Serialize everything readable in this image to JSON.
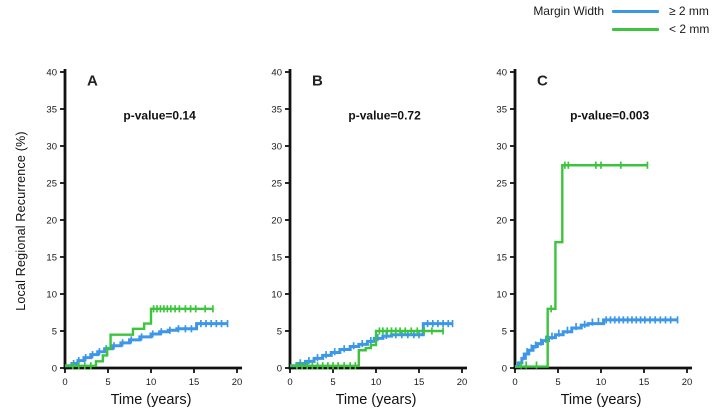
{
  "legend": {
    "title": "Margin Width",
    "entries": [
      {
        "name": "ge-2mm",
        "label": "≥ 2 mm",
        "color": "#3D97E8"
      },
      {
        "name": "lt-2mm",
        "label": "< 2 mm",
        "color": "#3CC43C"
      }
    ]
  },
  "chart_data": {
    "type": "line",
    "subtype": "kaplan-meier-step-curves",
    "xlabel": "Time (years)",
    "ylabel": "Local Regional Recurrence (%)",
    "xlim": [
      0,
      20
    ],
    "ylim": [
      0,
      40
    ],
    "xticks": [
      0,
      5,
      10,
      15,
      20
    ],
    "yticks": [
      0,
      5,
      10,
      15,
      20,
      25,
      30,
      35,
      40
    ],
    "grid": false,
    "legend_position": "top-right",
    "colors": {
      "axis": "#111111",
      "text": "#1a1a1a"
    },
    "panels": [
      {
        "label": "A",
        "annotation": "p-value=0.14",
        "series": [
          {
            "name": "≥ 2 mm",
            "color": "#3D97E8",
            "width": 3,
            "points": [
              [
                0,
                0.3
              ],
              [
                0.8,
                0.6
              ],
              [
                1.5,
                1.0
              ],
              [
                2.2,
                1.4
              ],
              [
                3,
                1.8
              ],
              [
                3.8,
                2.2
              ],
              [
                4.6,
                2.6
              ],
              [
                5.5,
                3.0
              ],
              [
                6.5,
                3.4
              ],
              [
                7.5,
                3.8
              ],
              [
                8.7,
                4.2
              ],
              [
                10,
                4.6
              ],
              [
                11,
                4.9
              ],
              [
                12,
                5.1
              ],
              [
                13,
                5.3
              ],
              [
                15.3,
                6.0
              ]
            ],
            "end": 18.9,
            "censors": [
              [
                1,
                0.6
              ],
              [
                1.6,
                1
              ],
              [
                2.4,
                1.4
              ],
              [
                3.2,
                1.8
              ],
              [
                4,
                2.2
              ],
              [
                4.8,
                2.6
              ],
              [
                5.7,
                3
              ],
              [
                6.7,
                3.4
              ],
              [
                7.7,
                3.8
              ],
              [
                8.9,
                4.2
              ],
              [
                10.2,
                4.6
              ],
              [
                11.2,
                4.9
              ],
              [
                12.2,
                5.1
              ],
              [
                13.2,
                5.3
              ],
              [
                14,
                5.3
              ],
              [
                14.7,
                5.3
              ],
              [
                15.8,
                6
              ],
              [
                16.4,
                6
              ],
              [
                17,
                6
              ],
              [
                17.6,
                6
              ],
              [
                18.2,
                6
              ],
              [
                18.9,
                6
              ]
            ]
          },
          {
            "name": "< 2 mm",
            "color": "#3CC43C",
            "width": 2.4,
            "points": [
              [
                0,
                0.3
              ],
              [
                3.6,
                0.9
              ],
              [
                4.4,
                1.7
              ],
              [
                4.9,
                2.7
              ],
              [
                5.3,
                4.5
              ],
              [
                7.9,
                5.3
              ],
              [
                9.2,
                6.0
              ],
              [
                10,
                8.0
              ]
            ],
            "end": 17.2,
            "censors": [
              [
                0.9,
                0.3
              ],
              [
                1.6,
                0.3
              ],
              [
                2.3,
                0.3
              ],
              [
                3,
                0.3
              ],
              [
                10.3,
                8
              ],
              [
                10.7,
                8
              ],
              [
                11.1,
                8
              ],
              [
                11.5,
                8
              ],
              [
                11.9,
                8
              ],
              [
                12.3,
                8
              ],
              [
                12.8,
                8
              ],
              [
                13.3,
                8
              ],
              [
                14,
                8
              ],
              [
                14.6,
                8
              ],
              [
                15.2,
                8
              ],
              [
                16.3,
                8
              ],
              [
                17.2,
                8
              ]
            ]
          }
        ]
      },
      {
        "label": "B",
        "annotation": "p-value=0.72",
        "series": [
          {
            "name": "≥ 2 mm",
            "color": "#3D97E8",
            "width": 3,
            "points": [
              [
                0,
                0.3
              ],
              [
                0.8,
                0.6
              ],
              [
                1.8,
                0.9
              ],
              [
                2.8,
                1.3
              ],
              [
                3.8,
                1.7
              ],
              [
                4.8,
                2.1
              ],
              [
                5.8,
                2.5
              ],
              [
                7,
                2.9
              ],
              [
                8,
                3.2
              ],
              [
                9,
                3.6
              ],
              [
                9.8,
                4.0
              ],
              [
                10.8,
                4.3
              ],
              [
                11.8,
                4.5
              ],
              [
                15.5,
                6.0
              ]
            ],
            "end": 18.9,
            "censors": [
              [
                1.2,
                0.7
              ],
              [
                2.2,
                1
              ],
              [
                3.2,
                1.4
              ],
              [
                4.2,
                1.8
              ],
              [
                5.2,
                2.2
              ],
              [
                6.3,
                2.6
              ],
              [
                7.4,
                3
              ],
              [
                8.4,
                3.3
              ],
              [
                9.4,
                3.7
              ],
              [
                10.2,
                4.1
              ],
              [
                11.2,
                4.4
              ],
              [
                12.3,
                4.5
              ],
              [
                13,
                4.5
              ],
              [
                13.7,
                4.5
              ],
              [
                14.4,
                4.5
              ],
              [
                15,
                4.5
              ],
              [
                16,
                6
              ],
              [
                16.6,
                6
              ],
              [
                17.2,
                6
              ],
              [
                17.8,
                6
              ],
              [
                18.4,
                6
              ],
              [
                18.9,
                6
              ]
            ]
          },
          {
            "name": "< 2 mm",
            "color": "#3CC43C",
            "width": 2.4,
            "points": [
              [
                0,
                0.3
              ],
              [
                8,
                2.4
              ],
              [
                8.8,
                2.7
              ],
              [
                9.4,
                3.1
              ],
              [
                10,
                5.0
              ]
            ],
            "end": 17.8,
            "censors": [
              [
                0.8,
                0.3
              ],
              [
                1.4,
                0.3
              ],
              [
                2,
                0.3
              ],
              [
                2.6,
                0.3
              ],
              [
                3.2,
                0.3
              ],
              [
                3.8,
                0.3
              ],
              [
                4.4,
                0.3
              ],
              [
                5,
                0.3
              ],
              [
                5.6,
                0.3
              ],
              [
                6.3,
                0.3
              ],
              [
                7,
                0.3
              ],
              [
                7.6,
                0.3
              ],
              [
                10.4,
                5
              ],
              [
                10.8,
                5
              ],
              [
                11.3,
                5
              ],
              [
                11.8,
                5
              ],
              [
                12.3,
                5
              ],
              [
                12.8,
                5
              ],
              [
                13.4,
                5
              ],
              [
                14.1,
                5
              ],
              [
                14.8,
                5
              ],
              [
                15.6,
                5
              ],
              [
                16.5,
                5
              ],
              [
                17.8,
                5
              ]
            ]
          }
        ]
      },
      {
        "label": "C",
        "annotation": "p-value=0.003",
        "series": [
          {
            "name": "≥ 2 mm",
            "color": "#3D97E8",
            "width": 3,
            "points": [
              [
                0,
                0.2
              ],
              [
                0.4,
                0.7
              ],
              [
                0.8,
                1.3
              ],
              [
                1.2,
                1.9
              ],
              [
                1.6,
                2.4
              ],
              [
                2.1,
                2.9
              ],
              [
                2.6,
                3.3
              ],
              [
                3.2,
                3.7
              ],
              [
                3.9,
                4.1
              ],
              [
                4.7,
                4.5
              ],
              [
                5.6,
                4.9
              ],
              [
                6.6,
                5.4
              ],
              [
                7.7,
                5.8
              ],
              [
                8.5,
                6.0
              ],
              [
                10.3,
                6.5
              ]
            ],
            "end": 18.9,
            "censors": [
              [
                1,
                1.6
              ],
              [
                1.4,
                2.2
              ],
              [
                1.9,
                2.7
              ],
              [
                2.4,
                3.1
              ],
              [
                3,
                3.5
              ],
              [
                3.6,
                3.9
              ],
              [
                4.3,
                4.3
              ],
              [
                5.1,
                4.7
              ],
              [
                6.1,
                5.1
              ],
              [
                7.1,
                5.6
              ],
              [
                8.1,
                5.9
              ],
              [
                9,
                6.2
              ],
              [
                9.7,
                6.3
              ],
              [
                10.6,
                6.5
              ],
              [
                11.1,
                6.5
              ],
              [
                11.6,
                6.5
              ],
              [
                12.1,
                6.5
              ],
              [
                12.6,
                6.5
              ],
              [
                13.1,
                6.5
              ],
              [
                13.6,
                6.5
              ],
              [
                14.1,
                6.5
              ],
              [
                14.6,
                6.5
              ],
              [
                15.1,
                6.5
              ],
              [
                15.7,
                6.5
              ],
              [
                16.3,
                6.5
              ],
              [
                16.9,
                6.5
              ],
              [
                17.5,
                6.5
              ],
              [
                18.1,
                6.5
              ],
              [
                18.9,
                6.5
              ]
            ]
          },
          {
            "name": "< 2 mm",
            "color": "#3CC43C",
            "width": 2.4,
            "points": [
              [
                0,
                0.2
              ],
              [
                3.8,
                8.0
              ],
              [
                4.7,
                17.0
              ],
              [
                5.5,
                27.4
              ]
            ],
            "end": 15.4,
            "censors": [
              [
                0.7,
                0.4
              ],
              [
                1.3,
                0.4
              ],
              [
                2.5,
                0.4
              ],
              [
                4.2,
                8
              ],
              [
                5.8,
                27.4
              ],
              [
                6.2,
                27.4
              ],
              [
                9.4,
                27.4
              ],
              [
                10,
                27.4
              ],
              [
                12.3,
                27.4
              ],
              [
                15.4,
                27.4
              ]
            ]
          }
        ]
      }
    ]
  }
}
